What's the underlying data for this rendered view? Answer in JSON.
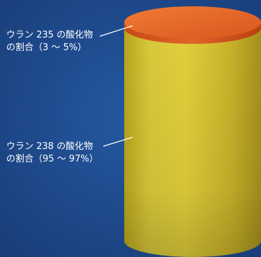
{
  "labels": {
    "u235": {
      "line1": "ウラン 235 の酸化物",
      "line2": "の割合（3 ～ 5%）"
    },
    "u238": {
      "line1": "ウラン 238 の酸化物",
      "line2": "の割合（95 ～ 97%）"
    }
  },
  "colors": {
    "background": "#1f4a8c",
    "cylinder_body": "#c9b82e",
    "cylinder_top": "#e86a2a",
    "leader_line": "#ffffff",
    "text": "#ffffff"
  }
}
